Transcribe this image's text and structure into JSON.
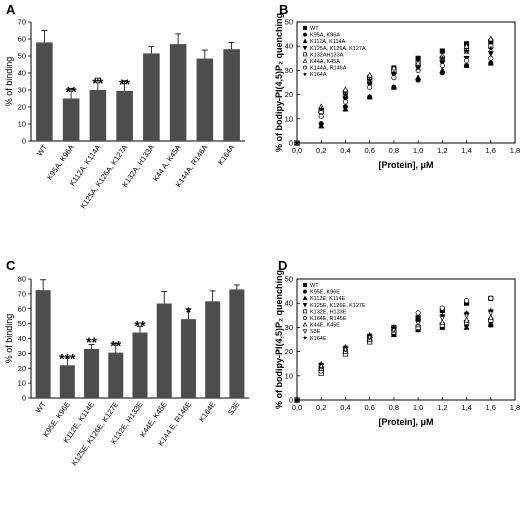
{
  "chart_data": [
    {
      "panel": "A",
      "type": "bar",
      "ylabel": "% of binding",
      "ylim": [
        0,
        70
      ],
      "yticks": [
        0,
        10,
        20,
        30,
        40,
        50,
        60,
        70
      ],
      "categories": [
        "WT",
        "K95A, K96A",
        "K112A, K114A",
        "K125A, K126A, K127A",
        "K132A, H133A",
        "K44 A, K45A",
        "K144A, R146A",
        "K164A"
      ],
      "values": [
        58,
        25,
        30,
        29.5,
        51.5,
        57,
        48.5,
        54
      ],
      "errors": [
        7,
        6,
        7,
        6,
        4,
        6,
        5,
        4
      ],
      "annotations": [
        "",
        "**",
        "**",
        "**",
        "",
        "",
        "",
        ""
      ]
    },
    {
      "panel": "B",
      "type": "scatter",
      "xlabel": "[Protein], μM",
      "ylabel": "% of bodipy-PI(4,5)P₂ quenching",
      "xlim": [
        0,
        1.8
      ],
      "ylim": [
        0,
        50
      ],
      "xticks": [
        "0,0",
        "0,2",
        "0,4",
        "0,6",
        "0,8",
        "1,0",
        "1,2",
        "1,4",
        "1,6",
        "1,8"
      ],
      "yticks": [
        0,
        10,
        20,
        30,
        40,
        50
      ],
      "legend_position": "top-left",
      "x": [
        0,
        0.2,
        0.4,
        0.6,
        0.8,
        1.0,
        1.2,
        1.4,
        1.6
      ],
      "series": [
        {
          "name": "WT",
          "marker": "square-filled",
          "values": [
            0,
            13,
            21,
            27,
            31,
            35,
            38,
            41,
            42
          ]
        },
        {
          "name": "K95A, K96A",
          "marker": "circle-filled",
          "values": [
            0,
            8,
            15,
            19,
            23,
            26,
            29,
            32,
            33
          ]
        },
        {
          "name": "K112A, K114A",
          "marker": "triangle-filled",
          "values": [
            0,
            7,
            14,
            19,
            23,
            27,
            30,
            32,
            33
          ]
        },
        {
          "name": "K125A, K126A, K127A",
          "marker": "triangle-down-filled",
          "values": [
            0,
            12,
            18,
            24,
            28,
            31,
            33,
            35,
            37
          ]
        },
        {
          "name": "K132AH133A",
          "marker": "square-open",
          "values": [
            0,
            13,
            20,
            26,
            30,
            33,
            35,
            38,
            40
          ]
        },
        {
          "name": "K44A, K45A",
          "marker": "triangle-open",
          "values": [
            0,
            15,
            22,
            28,
            31,
            33,
            36,
            40,
            43
          ]
        },
        {
          "name": "K144A, R146A",
          "marker": "circle-open",
          "values": [
            0,
            11,
            17,
            23,
            27,
            30,
            32,
            34,
            35
          ]
        },
        {
          "name": "K164A",
          "marker": "star",
          "values": [
            0,
            14,
            20,
            26,
            29,
            31,
            35,
            38,
            39
          ]
        }
      ]
    },
    {
      "panel": "C",
      "type": "bar",
      "ylabel": "% of binding",
      "ylim": [
        0,
        80
      ],
      "yticks": [
        0,
        10,
        20,
        30,
        40,
        50,
        60,
        70,
        80
      ],
      "categories": [
        "WT",
        "K95E, K96E",
        "K112E, K114E",
        "K125E, K126E, K127E",
        "K132E, H133E",
        "K44E, K45E",
        "K144 E, R146E",
        "K164E",
        "S3E"
      ],
      "values": [
        72.5,
        22,
        33,
        30.5,
        44,
        63.5,
        53,
        65,
        73
      ],
      "errors": [
        7,
        5,
        3,
        6,
        4,
        8,
        7,
        7,
        3
      ],
      "annotations": [
        "",
        "***",
        "**",
        "**",
        "**",
        "",
        "*",
        "",
        ""
      ]
    },
    {
      "panel": "D",
      "type": "scatter",
      "xlabel": "[Protein], μM",
      "ylabel": "% of bodipy-PI(4,5)P₂ quenching",
      "xlim": [
        0,
        1.8
      ],
      "ylim": [
        0,
        50
      ],
      "xticks": [
        "0,0",
        "0,2",
        "0,4",
        "0,6",
        "0,8",
        "1,0",
        "1,2",
        "1,4",
        "1,6",
        "1,8"
      ],
      "yticks": [
        0,
        10,
        20,
        30,
        40,
        50
      ],
      "legend_position": "top-left",
      "x": [
        0,
        0.2,
        0.4,
        0.6,
        0.8,
        1.0,
        1.2,
        1.4,
        1.6
      ],
      "series": [
        {
          "name": "WT",
          "marker": "square-filled",
          "values": [
            0,
            13,
            20,
            26,
            30,
            34,
            37,
            40,
            42
          ]
        },
        {
          "name": "K95E, K96E",
          "marker": "circle-filled",
          "values": [
            0,
            12,
            19,
            24,
            27,
            29,
            30,
            31,
            31
          ]
        },
        {
          "name": "K112E, K114E",
          "marker": "triangle-filled",
          "values": [
            0,
            14,
            20,
            24,
            27,
            29,
            30,
            30,
            31
          ]
        },
        {
          "name": "K125E, K126E, K127E",
          "marker": "triangle-down-filled",
          "values": [
            0,
            14,
            21,
            25,
            28,
            30,
            31,
            32,
            32
          ]
        },
        {
          "name": "K132E, H133E",
          "marker": "square-open",
          "values": [
            0,
            11,
            19,
            24,
            28,
            30,
            31,
            32,
            33
          ]
        },
        {
          "name": "K164E, R146E",
          "marker": "circle-open",
          "values": [
            0,
            12,
            20,
            26,
            30,
            36,
            38,
            41,
            42
          ]
        },
        {
          "name": "K44E, K45E",
          "marker": "triangle-open",
          "values": [
            0,
            13,
            20,
            25,
            28,
            31,
            32,
            33,
            34
          ]
        },
        {
          "name": "S3E",
          "marker": "triangle-down-open",
          "values": [
            0,
            14,
            21,
            26,
            29,
            32,
            34,
            35,
            36
          ]
        },
        {
          "name": "K164E",
          "marker": "star",
          "values": [
            0,
            15,
            22,
            27,
            30,
            33,
            35,
            36,
            37
          ]
        }
      ]
    }
  ]
}
